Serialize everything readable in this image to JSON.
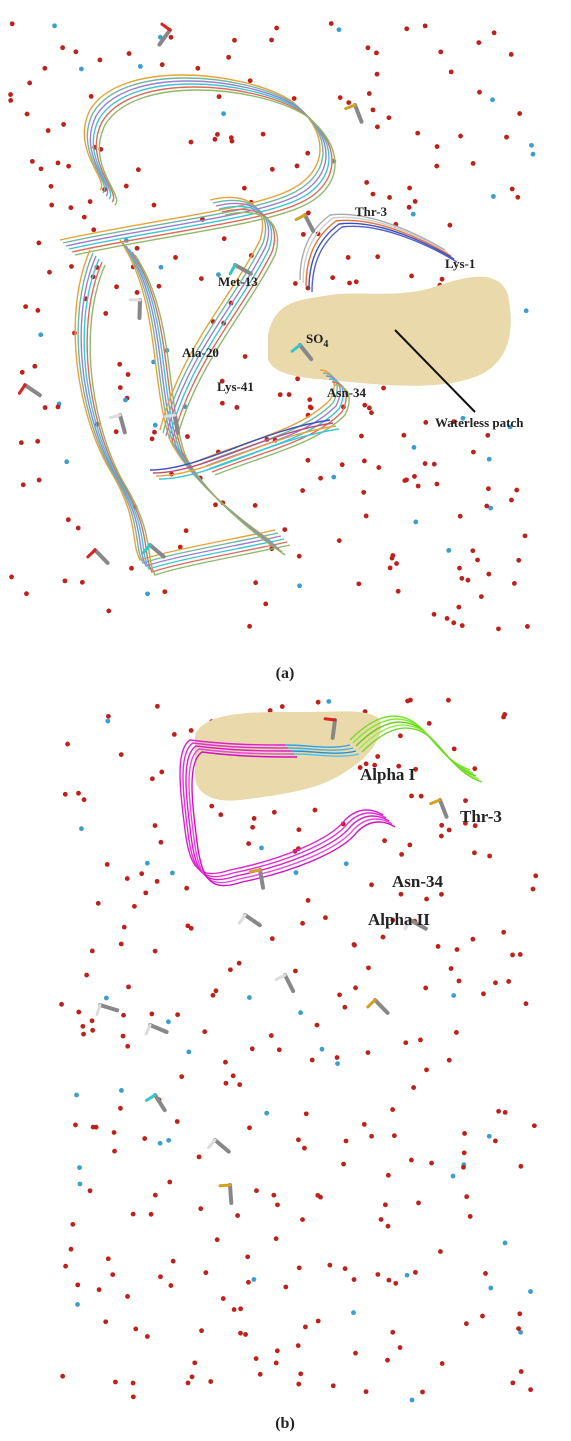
{
  "panels": [
    {
      "labels": [
        "Thr-3",
        "Lys-1",
        "Met-13",
        "Ala-20",
        "Lys-41",
        "Asn-34",
        "Waterless patch"
      ],
      "sulfate": {
        "text": "SO",
        "subscript": "4"
      },
      "caption": "(a)"
    },
    {
      "labels": [
        "Alpha I",
        "Thr-3",
        "Asn-34",
        "Alpha II"
      ],
      "caption": "(b)"
    }
  ]
}
